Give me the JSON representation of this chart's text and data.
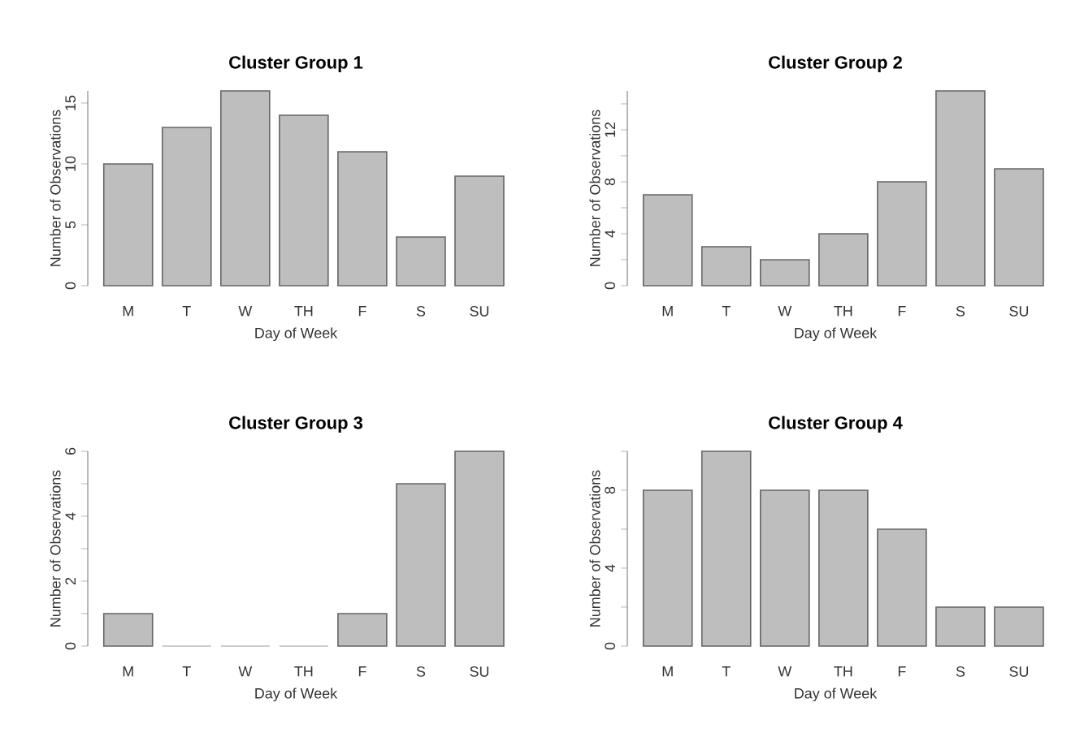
{
  "chart_data": [
    {
      "type": "bar",
      "title": "Cluster Group 1",
      "xlabel": "Day of Week",
      "ylabel": "Number of Observations",
      "categories": [
        "M",
        "T",
        "W",
        "TH",
        "F",
        "S",
        "SU"
      ],
      "values": [
        10,
        13,
        16,
        14,
        11,
        4,
        9
      ],
      "color": "#bebebe",
      "ylim": [
        0,
        16
      ],
      "yticks": [
        0,
        5,
        10,
        15
      ]
    },
    {
      "type": "bar",
      "title": "Cluster Group 2",
      "xlabel": "Day of Week",
      "ylabel": "Number of Observations",
      "categories": [
        "M",
        "T",
        "W",
        "TH",
        "F",
        "S",
        "SU"
      ],
      "values": [
        7,
        3,
        2,
        4,
        8,
        15,
        9
      ],
      "color": "#bebebe",
      "ylim": [
        0,
        15
      ],
      "yticks": [
        0,
        {
          "value": 2,
          "label": null
        },
        4,
        {
          "value": 6,
          "label": null
        },
        8,
        {
          "value": 10,
          "label": null
        },
        12,
        {
          "value": 14,
          "label": null
        }
      ]
    },
    {
      "type": "bar",
      "title": "Cluster Group 3",
      "xlabel": "Day of Week",
      "ylabel": "Number of Observations",
      "categories": [
        "M",
        "T",
        "W",
        "TH",
        "F",
        "S",
        "SU"
      ],
      "values": [
        1,
        0,
        0,
        0,
        1,
        5,
        6
      ],
      "color": "#bebebe",
      "ylim": [
        0,
        6
      ],
      "yticks": [
        0,
        {
          "value": 1,
          "label": null
        },
        2,
        {
          "value": 3,
          "label": null
        },
        4,
        {
          "value": 5,
          "label": null
        },
        6
      ]
    },
    {
      "type": "bar",
      "title": "Cluster Group 4",
      "xlabel": "Day of Week",
      "ylabel": "Number of Observations",
      "categories": [
        "M",
        "T",
        "W",
        "TH",
        "F",
        "S",
        "SU"
      ],
      "values": [
        8,
        10,
        8,
        8,
        6,
        2,
        2
      ],
      "color": "#bebebe",
      "ylim": [
        0,
        10
      ],
      "yticks": [
        0,
        {
          "value": 2,
          "label": null
        },
        4,
        {
          "value": 6,
          "label": null
        },
        8,
        {
          "value": 10,
          "label": null
        }
      ]
    }
  ]
}
